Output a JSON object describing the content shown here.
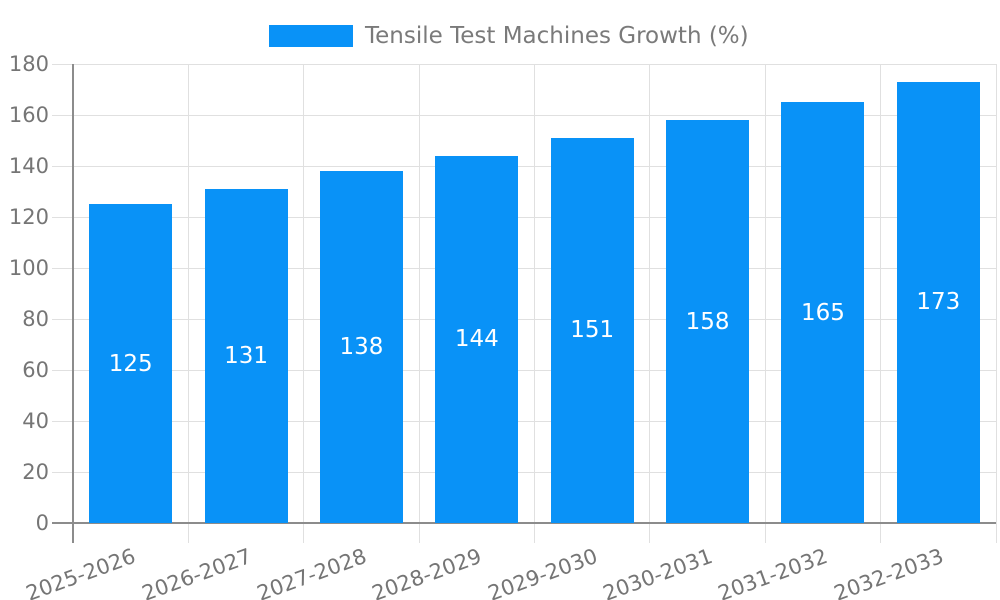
{
  "chart_data": {
    "type": "bar",
    "title": "",
    "legend_label": "Tensile Test Machines Growth (%)",
    "legend_position": "top-center",
    "categories": [
      "2025-2026",
      "2026-2027",
      "2027-2028",
      "2028-2029",
      "2029-2030",
      "2030-2031",
      "2031-2032",
      "2032-2033"
    ],
    "values": [
      125,
      131,
      138,
      144,
      151,
      158,
      165,
      173
    ],
    "value_label_position": "inside-center",
    "xlabel": "",
    "ylabel": "",
    "ylim": [
      0,
      180
    ],
    "ytick_step": 20,
    "yticks": [
      0,
      20,
      40,
      60,
      80,
      100,
      120,
      140,
      160,
      180
    ],
    "x_tick_rotation_deg": -20,
    "grid": true,
    "colors": {
      "bar": "#0992f7",
      "grid": "#e0e0e0",
      "axis": "#8c8c8c",
      "tick_labels": "#757575",
      "value_labels": "#ffffff",
      "legend_text": "#7a7a7a",
      "background": "#ffffff"
    }
  }
}
